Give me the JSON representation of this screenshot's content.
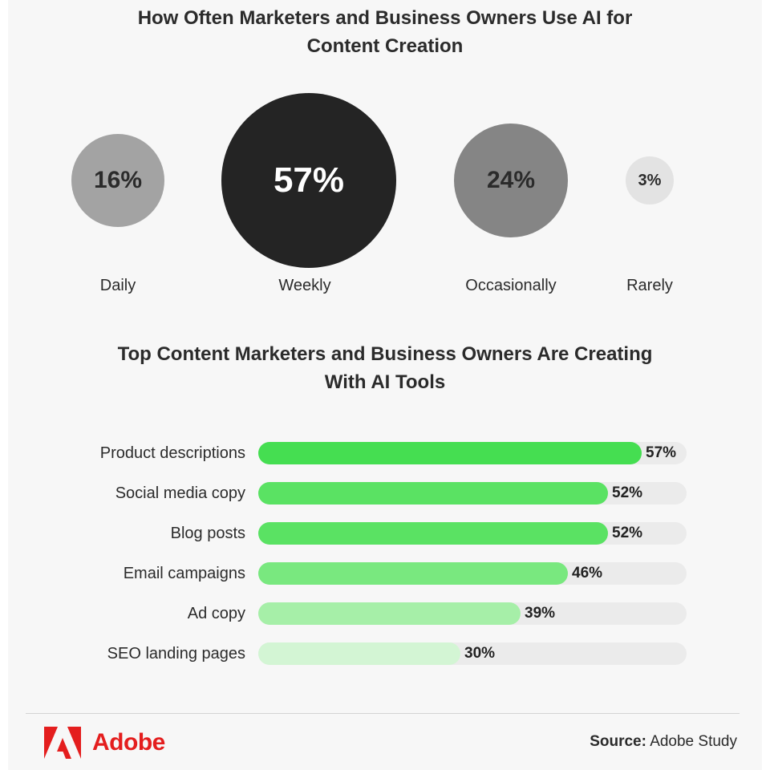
{
  "frequency_chart": {
    "title_line1": "How Often Marketers and Business Owners Use AI for",
    "title_line2": "Content Creation",
    "items": [
      {
        "label": "Daily",
        "value_text": "16%",
        "color": "#a3a3a3"
      },
      {
        "label": "Weekly",
        "value_text": "57%",
        "color": "#242424"
      },
      {
        "label": "Occasionally",
        "value_text": "24%",
        "color": "#858585"
      },
      {
        "label": "Rarely",
        "value_text": "3%",
        "color": "#e3e3e3"
      }
    ]
  },
  "tools_chart": {
    "title_line1": "Top Content Marketers and Business Owners Are Creating",
    "title_line2": "With AI Tools"
  },
  "chart_data": [
    {
      "type": "bubble",
      "categories": [
        "Daily",
        "Weekly",
        "Occasionally",
        "Rarely"
      ],
      "values": [
        16,
        57,
        24,
        3
      ],
      "unit": "%"
    },
    {
      "type": "bar",
      "orientation": "horizontal",
      "categories": [
        "Product descriptions",
        "Social media copy",
        "Blog posts",
        "Email campaigns",
        "Ad copy",
        "SEO landing pages"
      ],
      "values": [
        57,
        52,
        52,
        46,
        39,
        30
      ],
      "unit": "%",
      "colors": [
        "#45de51",
        "#5ae263",
        "#5ae263",
        "#79e87f",
        "#a6efa8",
        "#d3f5d4"
      ],
      "track_color": "#ebebeb"
    }
  ],
  "footer": {
    "brand": "Adobe",
    "brand_color": "#e41e1e",
    "logo_icon": "adobe-logo-icon",
    "source_label": "Source:",
    "source_text": "Adobe Study"
  }
}
